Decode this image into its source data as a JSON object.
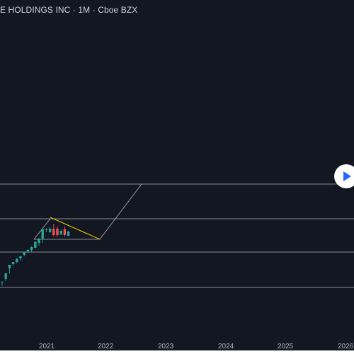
{
  "header": {
    "title": "E HOLDINGS INC · 1M · Cboe BZX"
  },
  "colors": {
    "background": "#131722",
    "candle_up": "#26a69a",
    "candle_down": "#ef5350",
    "wedge_upper_trendline": "#f7c600",
    "drawing_lines": "#b2b5be",
    "axis_text": "#b2b5be",
    "play_button_icon": "#2962ff"
  },
  "chart_data": {
    "type": "candlestick",
    "timeframe": "1M",
    "exchange": "Cboe BZX",
    "x_tick_labels": [
      "2021",
      "2022",
      "2023",
      "2024",
      "2025",
      "2026"
    ],
    "grid": false,
    "candles": [
      {
        "dir": "up",
        "o": 6.0,
        "h": 6.6,
        "l": 0.0,
        "c": 5.6
      },
      {
        "dir": "up",
        "o": 10.0,
        "h": 18.0,
        "l": 6.8,
        "c": 18.0
      },
      {
        "dir": "up",
        "o": 25.0,
        "h": 30.0,
        "l": 17.5,
        "c": 30.0
      },
      {
        "dir": "up",
        "o": 31.0,
        "h": 34.0,
        "l": 28.0,
        "c": 34.0
      },
      {
        "dir": "up",
        "o": 34.0,
        "h": 40.0,
        "l": 32.0,
        "c": 38.0
      },
      {
        "dir": "up",
        "o": 39.0,
        "h": 42.0,
        "l": 36.0,
        "c": 42.0
      },
      {
        "dir": "up",
        "o": 44.0,
        "h": 48.0,
        "l": 42.0,
        "c": 48.0
      },
      {
        "dir": "up",
        "o": 49.0,
        "h": 52.0,
        "l": 47.0,
        "c": 51.0
      },
      {
        "dir": "up",
        "o": 51.0,
        "h": 56.0,
        "l": 48.0,
        "c": 55.0
      },
      {
        "dir": "up",
        "o": 54.0,
        "h": 63.0,
        "l": 53.0,
        "c": 62.5
      },
      {
        "dir": "up",
        "o": 61.0,
        "h": 68.0,
        "l": 57.0,
        "c": 67.0
      },
      {
        "dir": "up",
        "o": 67.0,
        "h": 82.5,
        "l": 61.0,
        "c": 80.0
      },
      {
        "dir": "up",
        "o": 79.0,
        "h": 82.0,
        "l": 76.0,
        "c": 80.0
      },
      {
        "dir": "up",
        "o": 76.0,
        "h": 83.0,
        "l": 75.0,
        "c": 81.0
      },
      {
        "dir": "down",
        "o": 81.0,
        "h": 88.0,
        "l": 70.0,
        "c": 72.0
      },
      {
        "dir": "down",
        "o": 81.0,
        "h": 84.0,
        "l": 69.0,
        "c": 72.0
      },
      {
        "dir": "up",
        "o": 73.0,
        "h": 80.0,
        "l": 72.0,
        "c": 78.0
      },
      {
        "dir": "down",
        "o": 80.0,
        "h": 84.0,
        "l": 70.0,
        "c": 72.0
      },
      {
        "dir": "up",
        "o": 71.0,
        "h": 78.0,
        "l": 70.0,
        "c": 77.0
      }
    ]
  }
}
